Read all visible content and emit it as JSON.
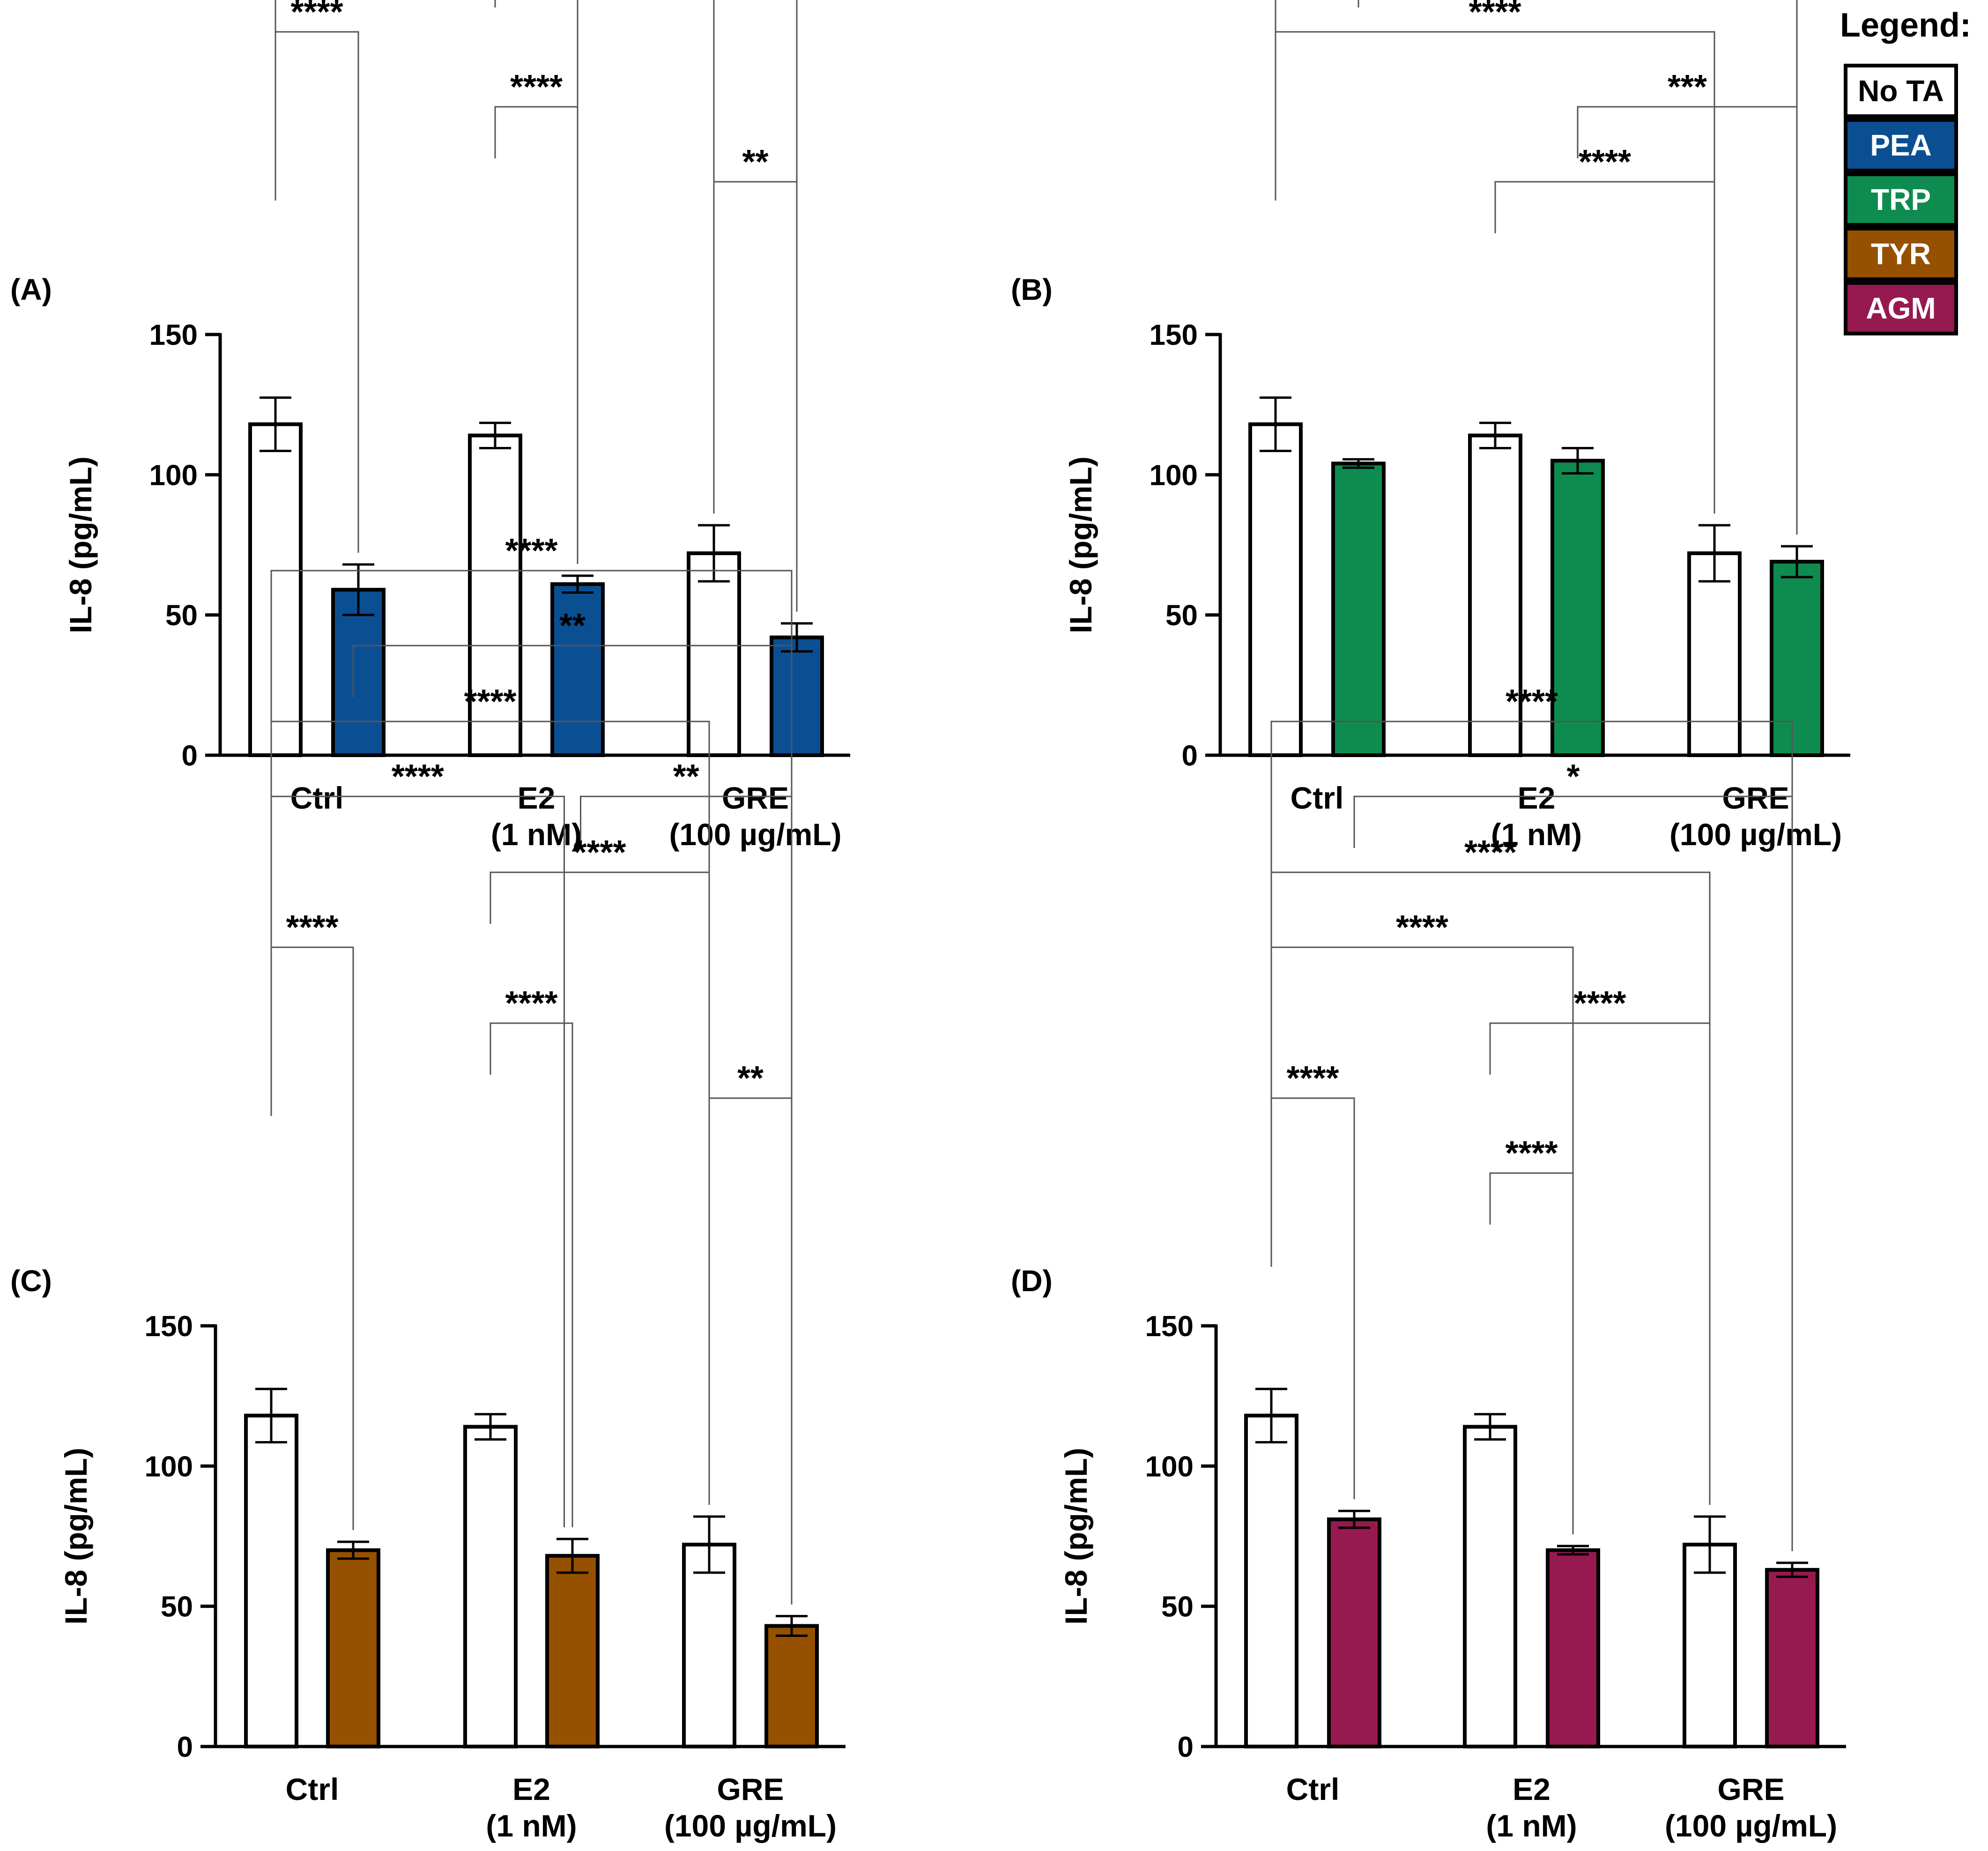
{
  "legend": {
    "title": "Legend:",
    "items": [
      {
        "label": "No TA",
        "color": "#ffffff",
        "text_color": "#000000"
      },
      {
        "label": "PEA",
        "color": "#0b4f93",
        "text_color": "#ffffff"
      },
      {
        "label": "TRP",
        "color": "#0e8c4f",
        "text_color": "#ffffff"
      },
      {
        "label": "TYR",
        "color": "#955000",
        "text_color": "#ffffff"
      },
      {
        "label": "AGM",
        "color": "#961a50",
        "text_color": "#ffffff"
      }
    ]
  },
  "chart_data": [
    {
      "panel": "(A)",
      "type": "bar",
      "ylabel": "IL-8 (pg/mL)",
      "ylim": [
        0,
        150
      ],
      "yticks": [
        0,
        50,
        100,
        150
      ],
      "categories": [
        [
          "Ctrl"
        ],
        [
          "E2",
          "(1 nM)"
        ],
        [
          "GRE",
          "(100 µg/mL)"
        ]
      ],
      "series": [
        {
          "name": "No TA",
          "color": "#ffffff",
          "values": [
            118,
            114,
            72
          ],
          "errors": [
            9.5,
            4.5,
            10
          ]
        },
        {
          "name": "PEA",
          "color": "#0b4f93",
          "values": [
            59,
            61,
            42
          ],
          "errors": [
            9,
            3,
            5
          ]
        }
      ],
      "comparisons": [
        {
          "from": [
            0,
            0
          ],
          "to": [
            2,
            1
          ],
          "label": "****"
        },
        {
          "from": [
            0,
            0
          ],
          "to": [
            2,
            0
          ],
          "label": "****"
        },
        {
          "from": [
            0,
            0
          ],
          "to": [
            1,
            1
          ],
          "label": "****"
        },
        {
          "from": [
            1,
            0
          ],
          "to": [
            2,
            0
          ],
          "label": "***"
        },
        {
          "from": [
            0,
            0
          ],
          "to": [
            0,
            1
          ],
          "label": "****"
        },
        {
          "from": [
            1,
            0
          ],
          "to": [
            1,
            1
          ],
          "label": "****"
        },
        {
          "from": [
            2,
            0
          ],
          "to": [
            2,
            1
          ],
          "label": "**"
        }
      ]
    },
    {
      "panel": "(B)",
      "type": "bar",
      "ylabel": "IL-8 (pg/mL)",
      "ylim": [
        0,
        150
      ],
      "yticks": [
        0,
        50,
        100,
        150
      ],
      "categories": [
        [
          "Ctrl"
        ],
        [
          "E2",
          "(1 nM)"
        ],
        [
          "GRE",
          "(100 µg/mL)"
        ]
      ],
      "series": [
        {
          "name": "No TA",
          "color": "#ffffff",
          "values": [
            118,
            114,
            72
          ],
          "errors": [
            9.5,
            4.5,
            10
          ]
        },
        {
          "name": "TRP",
          "color": "#0e8c4f",
          "values": [
            104,
            105,
            69
          ],
          "errors": [
            1.5,
            4.5,
            5.5
          ]
        }
      ],
      "comparisons": [
        {
          "from": [
            0,
            0
          ],
          "to": [
            2,
            1
          ],
          "label": "****"
        },
        {
          "from": [
            0,
            1
          ],
          "to": [
            2,
            1
          ],
          "label": "***"
        },
        {
          "from": [
            0,
            0
          ],
          "to": [
            2,
            0
          ],
          "label": "****"
        },
        {
          "from": [
            1,
            1
          ],
          "to": [
            2,
            1
          ],
          "label": "***"
        },
        {
          "from": [
            1,
            0
          ],
          "to": [
            2,
            0
          ],
          "label": "****"
        }
      ]
    },
    {
      "panel": "(C)",
      "type": "bar",
      "ylabel": "IL-8 (pg/mL)",
      "ylim": [
        0,
        150
      ],
      "yticks": [
        0,
        50,
        100,
        150
      ],
      "categories": [
        [
          "Ctrl"
        ],
        [
          "E2",
          "(1 nM)"
        ],
        [
          "GRE",
          "(100 µg/mL)"
        ]
      ],
      "series": [
        {
          "name": "No TA",
          "color": "#ffffff",
          "values": [
            118,
            114,
            72
          ],
          "errors": [
            9.5,
            4.5,
            10
          ]
        },
        {
          "name": "TYR",
          "color": "#955000",
          "values": [
            70,
            68,
            43
          ],
          "errors": [
            3,
            6,
            3.5
          ]
        }
      ],
      "comparisons": [
        {
          "from": [
            0,
            0
          ],
          "to": [
            2,
            1
          ],
          "label": "****"
        },
        {
          "from": [
            0,
            1
          ],
          "to": [
            2,
            1
          ],
          "label": "**"
        },
        {
          "from": [
            0,
            0
          ],
          "to": [
            2,
            0
          ],
          "label": "****"
        },
        {
          "from": [
            0,
            0
          ],
          "to": [
            1,
            0.9
          ],
          "label": "****"
        },
        {
          "from": [
            1,
            1.1
          ],
          "to": [
            2,
            1
          ],
          "label": "**"
        },
        {
          "from": [
            1,
            0
          ],
          "to": [
            2,
            0
          ],
          "label": "****"
        },
        {
          "from": [
            0,
            0
          ],
          "to": [
            0,
            1
          ],
          "label": "****"
        },
        {
          "from": [
            1,
            0
          ],
          "to": [
            1,
            1
          ],
          "label": "****"
        },
        {
          "from": [
            2,
            0
          ],
          "to": [
            2,
            1
          ],
          "label": "**"
        }
      ]
    },
    {
      "panel": "(D)",
      "type": "bar",
      "ylabel": "IL-8 (pg/mL)",
      "ylim": [
        0,
        150
      ],
      "yticks": [
        0,
        50,
        100,
        150
      ],
      "categories": [
        [
          "Ctrl"
        ],
        [
          "E2",
          "(1 nM)"
        ],
        [
          "GRE",
          "(100 µg/mL)"
        ]
      ],
      "series": [
        {
          "name": "No TA",
          "color": "#ffffff",
          "values": [
            118,
            114,
            72
          ],
          "errors": [
            9.5,
            4.5,
            10
          ]
        },
        {
          "name": "AGM",
          "color": "#961a50",
          "values": [
            81,
            70,
            63
          ],
          "errors": [
            3,
            1.5,
            2.5
          ]
        }
      ],
      "comparisons": [
        {
          "from": [
            0,
            0
          ],
          "to": [
            2,
            1
          ],
          "label": "****"
        },
        {
          "from": [
            0,
            1
          ],
          "to": [
            2,
            1
          ],
          "label": "*"
        },
        {
          "from": [
            0,
            0
          ],
          "to": [
            2,
            0
          ],
          "label": "****"
        },
        {
          "from": [
            0,
            0
          ],
          "to": [
            1,
            1
          ],
          "label": "****"
        },
        {
          "from": [
            1,
            0
          ],
          "to": [
            2,
            0
          ],
          "label": "****"
        },
        {
          "from": [
            0,
            0
          ],
          "to": [
            0,
            1
          ],
          "label": "****"
        },
        {
          "from": [
            1,
            0
          ],
          "to": [
            1,
            1
          ],
          "label": "****"
        }
      ]
    }
  ]
}
